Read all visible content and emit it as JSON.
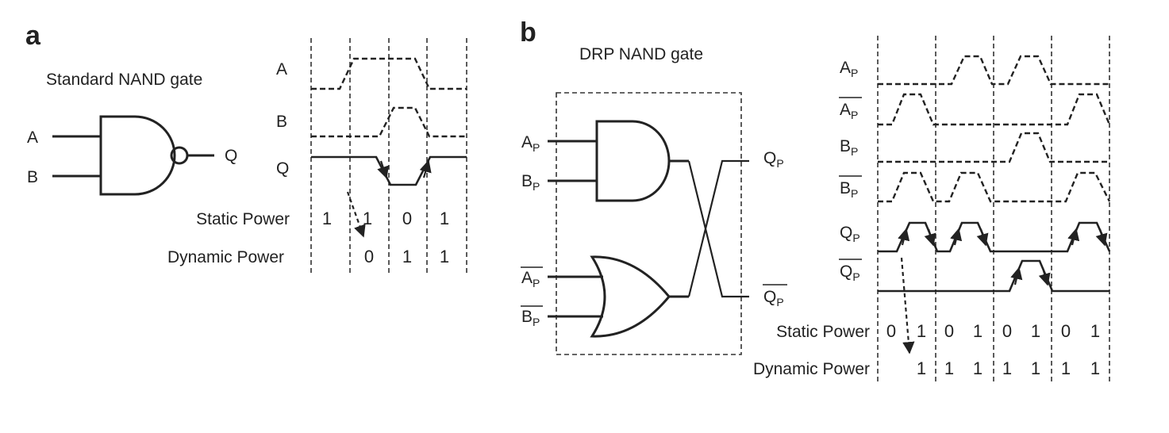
{
  "panel_a": {
    "letter": "a",
    "title": "Standard NAND gate",
    "input_a": "A",
    "input_b": "B",
    "output": "Q",
    "waves": {
      "a": "A",
      "b": "B",
      "q": "Q"
    },
    "static_label": "Static Power",
    "dynamic_label": "Dynamic Power",
    "static_values": [
      "1",
      "1",
      "0",
      "1"
    ],
    "dynamic_values": [
      "0",
      "1",
      "1"
    ]
  },
  "panel_b": {
    "letter": "b",
    "title": "DRP NAND gate",
    "inputs": {
      "ap": {
        "base": "A",
        "sub": "P"
      },
      "bp": {
        "base": "B",
        "sub": "P"
      },
      "apbar": {
        "base": "A",
        "sub": "P"
      },
      "bpbar": {
        "base": "B",
        "sub": "P"
      }
    },
    "outputs": {
      "qp": {
        "base": "Q",
        "sub": "P"
      },
      "qpbar": {
        "base": "Q",
        "sub": "P"
      }
    },
    "waves": {
      "ap": {
        "base": "A",
        "sub": "P"
      },
      "apbar": {
        "base": "A",
        "sub": "P"
      },
      "bp": {
        "base": "B",
        "sub": "P"
      },
      "bpbar": {
        "base": "B",
        "sub": "P"
      },
      "qp": {
        "base": "Q",
        "sub": "P"
      },
      "qpbar": {
        "base": "Q",
        "sub": "P"
      }
    },
    "static_label": "Static Power",
    "dynamic_label": "Dynamic Power",
    "static_values": [
      "0",
      "1",
      "0",
      "1",
      "0",
      "1",
      "0",
      "1"
    ],
    "dynamic_values": [
      "1",
      "1",
      "1",
      "1",
      "1",
      "1",
      "1"
    ]
  }
}
